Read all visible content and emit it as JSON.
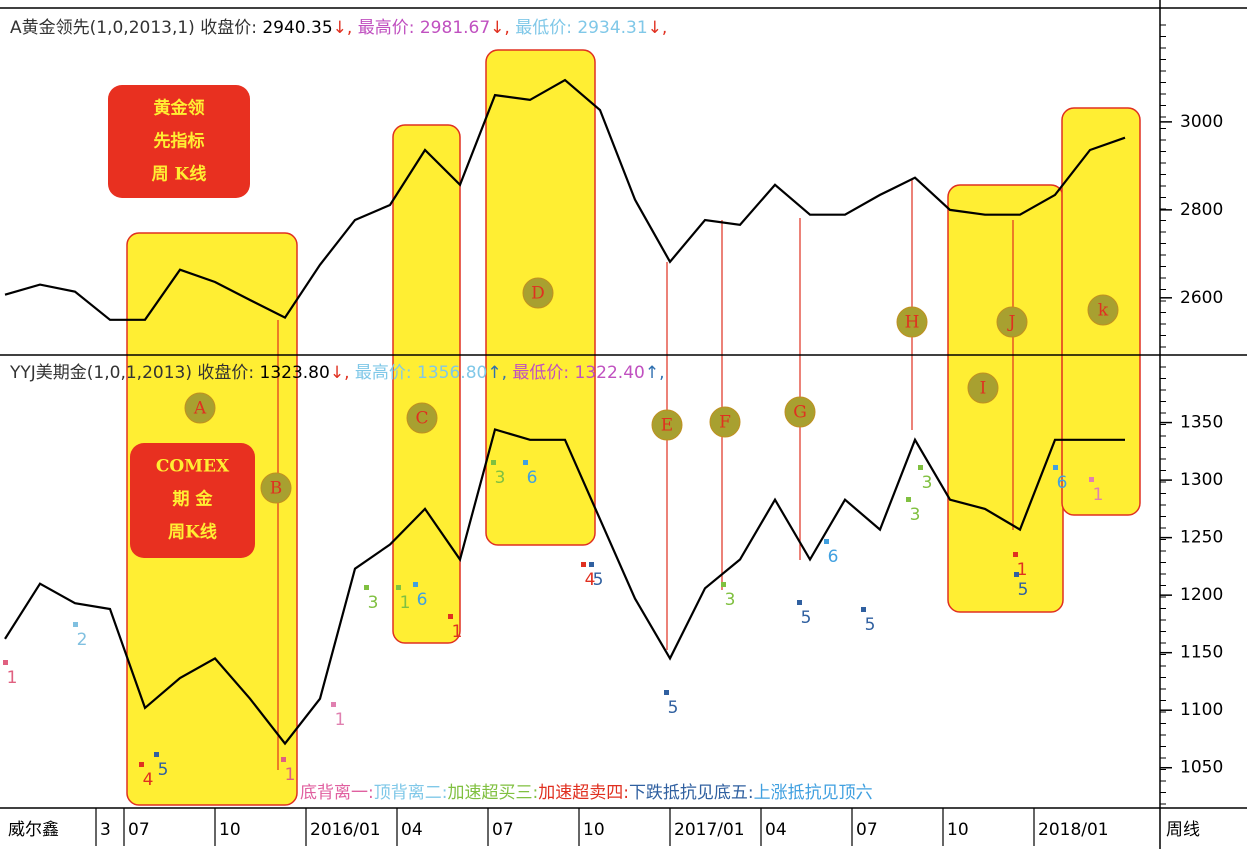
{
  "chart_data": [
    {
      "type": "line",
      "title_parts": [
        {
          "text": "A黄金领先(1,0,2013,1)  收盘价: ",
          "color": "#333333"
        },
        {
          "text": "2940.35",
          "color": "#000000"
        },
        {
          "text": "↓, ",
          "color": "#e03020"
        },
        {
          "text": "最高价: 2981.67",
          "color": "#c050c0"
        },
        {
          "text": "↓, ",
          "color": "#e03020"
        },
        {
          "text": "最低价: 2934.31",
          "color": "#80c8e8"
        },
        {
          "text": "↓,",
          "color": "#e03020"
        }
      ],
      "x": [
        0,
        5,
        10,
        15,
        20,
        25,
        30,
        35,
        40,
        45,
        50,
        55,
        60,
        65,
        70,
        75,
        80,
        85,
        90,
        95,
        100,
        105,
        110,
        115,
        120,
        125,
        130,
        135,
        140,
        145,
        150,
        155,
        160
      ],
      "values": [
        2607,
        2630,
        2614,
        2550,
        2550,
        2664,
        2636,
        2595,
        2555,
        2675,
        2777,
        2811,
        2936,
        2857,
        3061,
        3050,
        3095,
        3027,
        2823,
        2682,
        2777,
        2766,
        2857,
        2789,
        2789,
        2834,
        2873,
        2800,
        2789,
        2789,
        2834,
        2936,
        2964
      ],
      "color": "#000000",
      "xlim": [
        0,
        165
      ],
      "ylim": [
        2470,
        3243
      ],
      "yticks": [
        2600,
        2800,
        3000
      ],
      "label_box": [
        "黄金领",
        "先指标",
        "周  K线"
      ]
    },
    {
      "type": "line",
      "title_parts": [
        {
          "text": "YYJ美期金(1,0,1,2013)  收盘价: ",
          "color": "#333333"
        },
        {
          "text": "1323.80",
          "color": "#000000"
        },
        {
          "text": "↓, ",
          "color": "#e03020"
        },
        {
          "text": "最高价: 1356.80",
          "color": "#80c8e8"
        },
        {
          "text": "↑, ",
          "color": "#3070b0"
        },
        {
          "text": "最低价: 1322.40",
          "color": "#c050c0"
        },
        {
          "text": "↑,",
          "color": "#3070b0"
        }
      ],
      "x": [
        0,
        5,
        10,
        15,
        20,
        25,
        30,
        35,
        40,
        45,
        50,
        55,
        60,
        65,
        70,
        75,
        80,
        85,
        90,
        95,
        100,
        105,
        110,
        115,
        120,
        125,
        130,
        135,
        140,
        145,
        150,
        155,
        160
      ],
      "values": [
        1162,
        1210,
        1193,
        1188,
        1102,
        1128,
        1145,
        1110,
        1071,
        1110,
        1223,
        1244,
        1275,
        1231,
        1344,
        1335,
        1335,
        1266,
        1197,
        1145,
        1206,
        1231,
        1283,
        1231,
        1283,
        1257,
        1335,
        1283,
        1275,
        1257,
        1335,
        1335,
        1335
      ],
      "color": "#000000",
      "xlim": [
        0,
        165
      ],
      "ylim": [
        1015,
        1407
      ],
      "yticks": [
        1050,
        1100,
        1150,
        1200,
        1250,
        1300,
        1350
      ],
      "xticks": [
        {
          "value": 13,
          "label": "3"
        },
        {
          "value": 17,
          "label": "07"
        },
        {
          "value": 30,
          "label": "10"
        },
        {
          "value": 43,
          "label": "2016/01"
        },
        {
          "value": 56,
          "label": "04"
        },
        {
          "value": 69,
          "label": "07"
        },
        {
          "value": 82,
          "label": "10"
        },
        {
          "value": 95,
          "label": "2017/01"
        },
        {
          "value": 108,
          "label": "04"
        },
        {
          "value": 121,
          "label": "07"
        },
        {
          "value": 134,
          "label": "10"
        },
        {
          "value": 147,
          "label": "2018/01"
        }
      ],
      "software_label": "威尔鑫",
      "period_label": "周线",
      "label_box": [
        "COMEX",
        "期  金",
        "周K线"
      ],
      "zone_letters": [
        "A",
        "B",
        "C",
        "D",
        "E",
        "F",
        "G",
        "H",
        "I",
        "J",
        "k"
      ],
      "signals": [
        {
          "text": "1",
          "color": "#e06080"
        },
        {
          "text": "2",
          "color": "#80c0e0"
        },
        {
          "text": "4",
          "color": "#e03020"
        },
        {
          "text": "5",
          "color": "#3060a0"
        },
        {
          "text": "1",
          "color": "#e06080"
        },
        {
          "text": "1",
          "color": "#e080b0"
        },
        {
          "text": "3",
          "color": "#80c040"
        },
        {
          "text": "1",
          "color": "#80c040"
        },
        {
          "text": "6",
          "color": "#40a0e0"
        },
        {
          "text": "1",
          "color": "#e03020"
        },
        {
          "text": "3",
          "color": "#80c040"
        },
        {
          "text": "6",
          "color": "#40a0e0"
        },
        {
          "text": "4",
          "color": "#e03020"
        },
        {
          "text": "5",
          "color": "#3060a0"
        },
        {
          "text": "5",
          "color": "#3060a0"
        },
        {
          "text": "3",
          "color": "#80c040"
        },
        {
          "text": "5",
          "color": "#3060a0"
        },
        {
          "text": "6",
          "color": "#40a0e0"
        },
        {
          "text": "5",
          "color": "#3060a0"
        },
        {
          "text": "3",
          "color": "#80c040"
        },
        {
          "text": "3",
          "color": "#80c040"
        },
        {
          "text": "1",
          "color": "#e03020"
        },
        {
          "text": "5",
          "color": "#3060a0"
        },
        {
          "text": "6",
          "color": "#40a0e0"
        },
        {
          "text": "1",
          "color": "#e080b0"
        }
      ],
      "legend_parts": [
        {
          "text": "底背离一:",
          "color": "#e060a0"
        },
        {
          "text": "顶背离二:",
          "color": "#80c8e8"
        },
        {
          "text": "加速超买三:",
          "color": "#80c040"
        },
        {
          "text": "加速超卖四:",
          "color": "#e03020"
        },
        {
          "text": "下跌抵抗见底五:",
          "color": "#3060a0"
        },
        {
          "text": "上涨抵抗见顶六",
          "color": "#40a0e0"
        }
      ]
    }
  ]
}
